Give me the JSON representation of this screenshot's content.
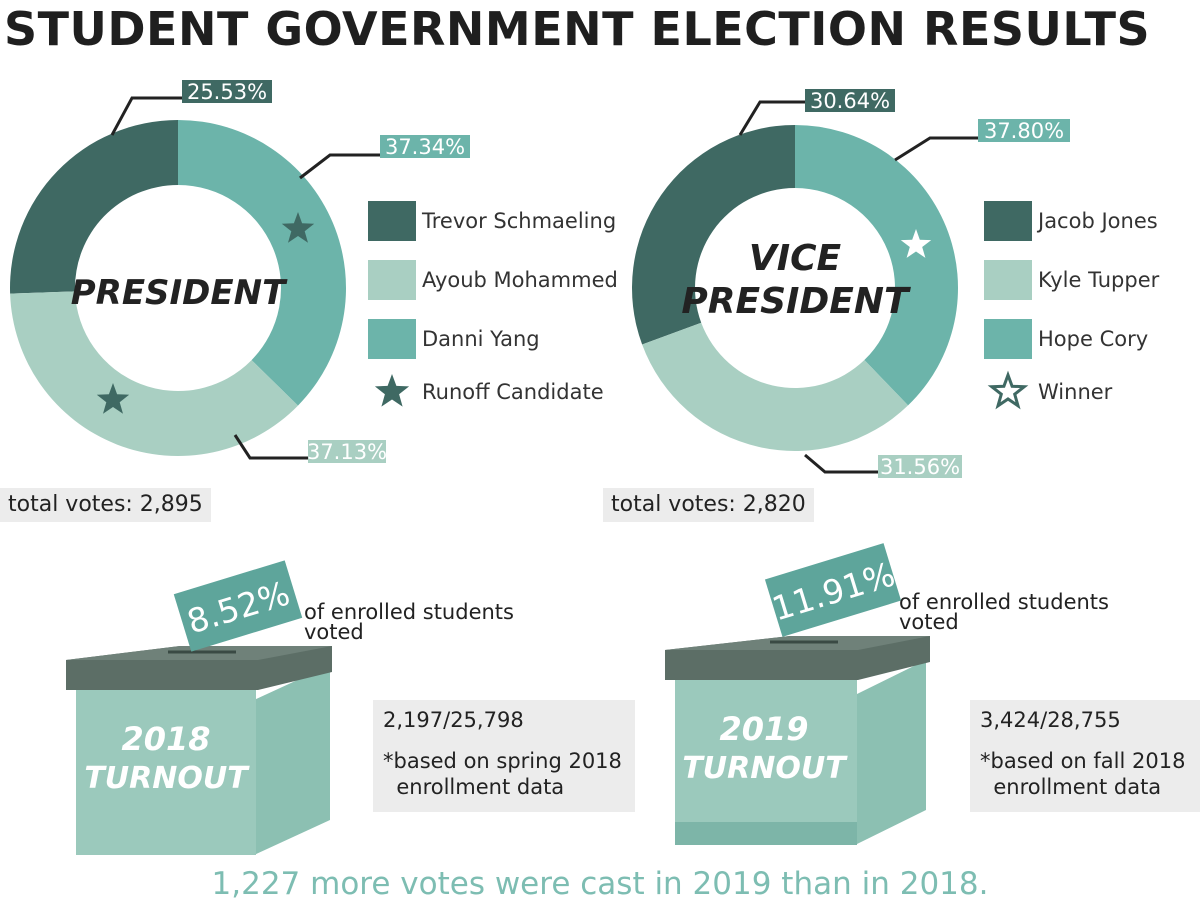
{
  "title": "STUDENT GOVERNMENT ELECTION RESULTS",
  "colors": {
    "dark": "#3f6963",
    "light": "#a9cfc2",
    "mid": "#6cb4aa",
    "label_bg_dark": "#3f6963",
    "label_bg_mid": "#6cb4aa",
    "box_front": "#9bc9bc",
    "box_lid": "#5c6e66",
    "box_side": "#8cc0b2",
    "ballot": "#5ea59b",
    "accent_text": "#7dbdb2"
  },
  "chart_data": [
    {
      "type": "pie",
      "center_label": "PRESIDENT",
      "series": [
        {
          "name": "Trevor Schmaeling",
          "value": 25.53,
          "label": "25.53%",
          "color": "#3f6963"
        },
        {
          "name": "Danni Yang",
          "value": 37.34,
          "label": "37.34%",
          "color": "#6cb4aa"
        },
        {
          "name": "Ayoub Mohammed",
          "value": 37.13,
          "label": "37.13%",
          "color": "#a9cfc2"
        }
      ],
      "legend": [
        "Trevor Schmaeling",
        "Ayoub Mohammed",
        "Danni Yang",
        "Runoff Candidate"
      ],
      "total_votes": "total votes: 2,895"
    },
    {
      "type": "pie",
      "center_label": [
        "VICE",
        "PRESIDENT"
      ],
      "series": [
        {
          "name": "Jacob Jones",
          "value": 30.64,
          "label": "30.64%",
          "color": "#3f6963"
        },
        {
          "name": "Hope Cory",
          "value": 37.8,
          "label": "37.80%",
          "color": "#6cb4aa"
        },
        {
          "name": "Kyle Tupper",
          "value": 31.56,
          "label": "31.56%",
          "color": "#a9cfc2"
        }
      ],
      "legend": [
        "Jacob Jones",
        "Kyle Tupper",
        "Hope Cory",
        "Winner"
      ],
      "total_votes": "total votes: 2,820"
    }
  ],
  "turnout": [
    {
      "percent": "8.52%",
      "enrolled": "of enrolled students\nvoted",
      "year": "2018",
      "label": "TURNOUT",
      "ratio": "2,197/25,798",
      "note": "*based on spring 2018\n  enrollment data"
    },
    {
      "percent": "11.91%",
      "enrolled": "of enrolled students\nvoted",
      "year": "2019",
      "label": "TURNOUT",
      "ratio": "3,424/28,755",
      "note": "*based on fall 2018\n  enrollment data"
    }
  ],
  "footer": "1,227 more votes were cast in 2019 than in 2018."
}
